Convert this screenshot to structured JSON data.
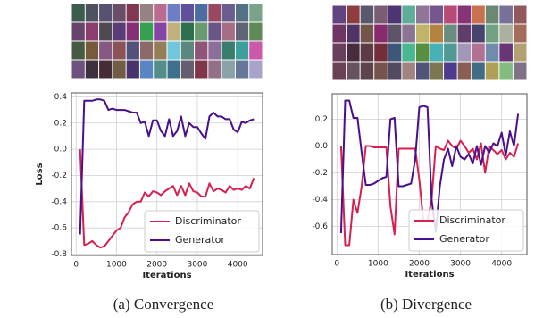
{
  "chart_data": [
    {
      "type": "line",
      "caption": "(a) Convergence",
      "ylabel": "Loss",
      "xlabel": "Iterations",
      "x": [
        100,
        200,
        300,
        400,
        500,
        600,
        700,
        800,
        900,
        1000,
        1100,
        1200,
        1300,
        1400,
        1500,
        1600,
        1700,
        1800,
        1900,
        2000,
        2100,
        2200,
        2300,
        2400,
        2500,
        2600,
        2700,
        2800,
        2900,
        3000,
        3100,
        3200,
        3300,
        3400,
        3500,
        3600,
        3700,
        3800,
        3900,
        4000,
        4100,
        4200,
        4300,
        4400
      ],
      "series": [
        {
          "name": "Discriminator",
          "color": "#d7204f",
          "values": [
            0.0,
            -0.73,
            -0.72,
            -0.7,
            -0.73,
            -0.75,
            -0.74,
            -0.7,
            -0.66,
            -0.62,
            -0.6,
            -0.52,
            -0.48,
            -0.42,
            -0.4,
            -0.4,
            -0.33,
            -0.36,
            -0.32,
            -0.33,
            -0.35,
            -0.32,
            -0.3,
            -0.28,
            -0.35,
            -0.28,
            -0.35,
            -0.26,
            -0.32,
            -0.33,
            -0.36,
            -0.36,
            -0.26,
            -0.32,
            -0.3,
            -0.31,
            -0.33,
            -0.28,
            -0.31,
            -0.3,
            -0.31,
            -0.28,
            -0.3,
            -0.22
          ]
        },
        {
          "name": "Generator",
          "color": "#4a0f8c",
          "values": [
            -0.65,
            0.37,
            0.37,
            0.37,
            0.38,
            0.38,
            0.37,
            0.3,
            0.31,
            0.3,
            0.3,
            0.3,
            0.29,
            0.28,
            0.28,
            0.2,
            0.21,
            0.1,
            0.22,
            0.22,
            0.14,
            0.1,
            0.23,
            0.1,
            0.14,
            0.25,
            0.1,
            0.2,
            0.17,
            0.17,
            0.12,
            0.08,
            0.25,
            0.28,
            0.25,
            0.25,
            0.23,
            0.23,
            0.15,
            0.13,
            0.21,
            0.2,
            0.22,
            0.23
          ]
        }
      ],
      "xlim": [
        -115,
        4615
      ],
      "xticks": [
        0,
        1000,
        2000,
        3000,
        4000
      ],
      "ylim": [
        -0.81,
        0.43
      ],
      "yticks": [
        -0.8,
        -0.6,
        -0.4,
        -0.2,
        {
          "value": 0,
          "label": "0.0"
        },
        0.2,
        0.4
      ],
      "grid": true,
      "legend": "lower right"
    },
    {
      "type": "line",
      "caption": "(b) Divergence",
      "xlabel": "Iterations",
      "x": [
        100,
        200,
        300,
        400,
        500,
        600,
        700,
        800,
        900,
        1000,
        1100,
        1200,
        1300,
        1400,
        1500,
        1600,
        1700,
        1800,
        1900,
        2000,
        2100,
        2200,
        2300,
        2400,
        2500,
        2600,
        2700,
        2800,
        2900,
        3000,
        3100,
        3200,
        3300,
        3400,
        3500,
        3600,
        3700,
        3800,
        3900,
        4000,
        4100,
        4200,
        4300,
        4400
      ],
      "series": [
        {
          "name": "Discriminator",
          "color": "#d7204f",
          "values": [
            0.0,
            -0.74,
            -0.74,
            -0.4,
            -0.5,
            -0.3,
            0.0,
            0.0,
            -0.01,
            -0.01,
            -0.01,
            -0.01,
            -0.45,
            -0.66,
            -0.02,
            -0.02,
            -0.02,
            -0.02,
            -0.02,
            -0.25,
            -0.56,
            -0.56,
            -0.4,
            0.0,
            -0.02,
            -0.03,
            0.04,
            0.0,
            -0.02,
            0.04,
            0.0,
            -0.05,
            -0.02,
            -0.1,
            0.02,
            -0.2,
            0.0,
            -0.03,
            -0.06,
            -0.03,
            -0.1,
            -0.05,
            -0.08,
            0.02
          ]
        },
        {
          "name": "Generator",
          "color": "#4a0f8c",
          "values": [
            -0.65,
            0.34,
            0.34,
            0.21,
            0.21,
            -0.05,
            -0.29,
            -0.29,
            -0.28,
            -0.26,
            -0.24,
            -0.23,
            0.2,
            0.21,
            -0.3,
            -0.3,
            -0.29,
            -0.28,
            -0.1,
            0.29,
            0.3,
            0.29,
            -0.4,
            -0.64,
            -0.3,
            -0.1,
            -0.02,
            -0.15,
            0.0,
            -0.08,
            -0.1,
            -0.06,
            -0.13,
            0.0,
            -0.14,
            0.0,
            -0.05,
            0.02,
            0.0,
            0.1,
            -0.07,
            0.11,
            0.0,
            0.24
          ]
        }
      ],
      "xlim": [
        -115,
        4615
      ],
      "xticks": [
        0,
        1000,
        2000,
        3000,
        4000
      ],
      "ylim": [
        -0.81,
        0.39
      ],
      "yticks": [
        -0.6,
        -0.4,
        -0.2,
        {
          "value": 0,
          "label": "0.0"
        },
        0.2
      ],
      "grid": true,
      "legend": "lower right"
    }
  ]
}
